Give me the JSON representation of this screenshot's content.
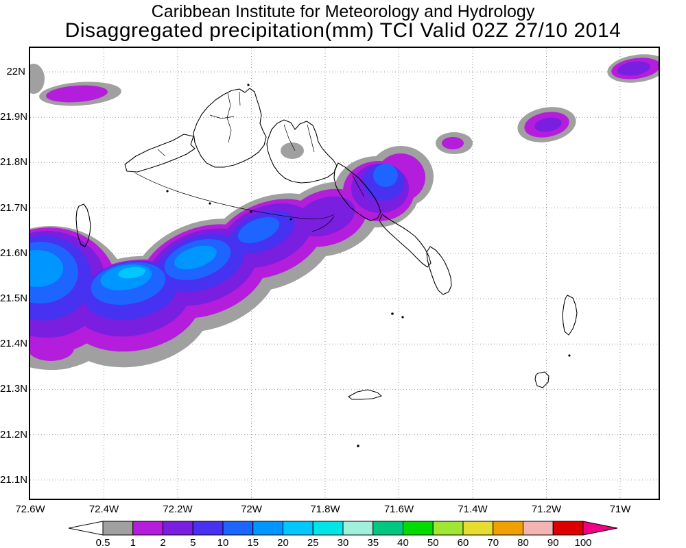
{
  "header": {
    "title_line1": "Caribbean Institute for Meteorology and Hydrology",
    "title_line2": "Disaggregated precipitation(mm) TCI Valid 02Z 27/10 2014"
  },
  "map": {
    "x_axis_labels": [
      "72.6W",
      "72.4W",
      "72.2W",
      "72W",
      "71.8W",
      "71.6W",
      "71.4W",
      "71.2W",
      "71W"
    ],
    "y_axis_labels": [
      "22N",
      "21.9N",
      "21.8N",
      "21.7N",
      "21.6N",
      "21.5N",
      "21.4N",
      "21.3N",
      "21.2N",
      "21.1N"
    ]
  },
  "colorbar": {
    "unit": "mm",
    "labels": [
      "0.5",
      "1",
      "2",
      "5",
      "10",
      "15",
      "20",
      "25",
      "30",
      "35",
      "40",
      "50",
      "60",
      "70",
      "80",
      "90",
      "100"
    ],
    "below_min_color": "#ffffff",
    "segment_colors": [
      "#a0a0a0",
      "#b31ddb",
      "#7a1ee0",
      "#4632f0",
      "#1e64ff",
      "#0096ff",
      "#00c8ff",
      "#00e6e6",
      "#a0f0dc",
      "#00c882",
      "#00dc00",
      "#a0e632",
      "#e6dc32",
      "#f0a000",
      "#f5b4b4",
      "#dc0000"
    ],
    "above_max_color": "#f00082"
  }
}
